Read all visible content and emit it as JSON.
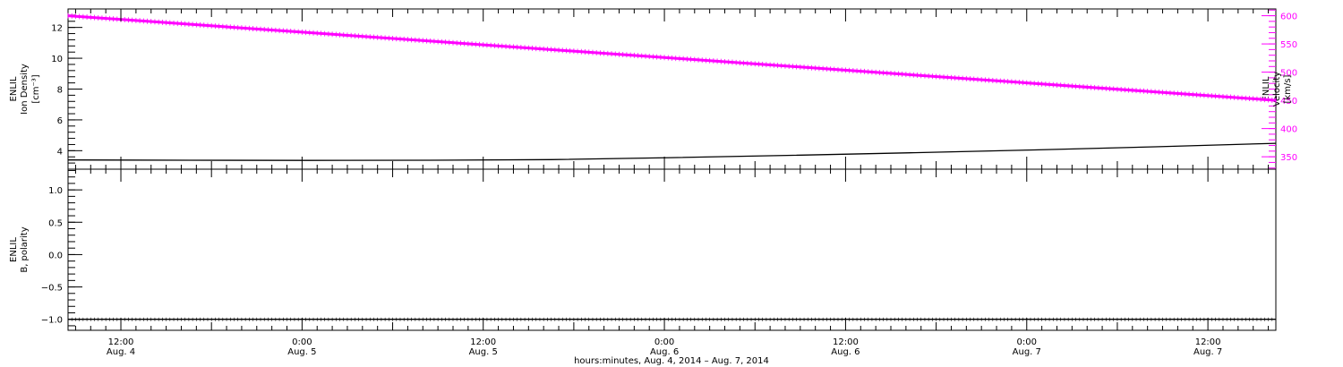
{
  "chart_data": [
    {
      "type": "line",
      "ylabel": [
        "ENLIL",
        "Ion Density",
        "[cm⁻³]"
      ],
      "ylim": [
        2.8,
        13.2
      ],
      "yticks": [
        4,
        6,
        8,
        10,
        12
      ],
      "ytick_labels": [
        "4",
        "6",
        "8",
        "10",
        "12"
      ],
      "y2label": [
        "ENLIL",
        "Velocity",
        "[km/s]"
      ],
      "y2lim": [
        328,
        612
      ],
      "y2ticks": [
        350,
        400,
        450,
        500,
        550,
        600
      ],
      "y2tick_labels": [
        "350",
        "400",
        "450",
        "500",
        "550",
        "600"
      ],
      "grid": false,
      "series": [
        {
          "axis": "left",
          "color": "#000000",
          "x": [
            0,
            8,
            16,
            24,
            32,
            40,
            48,
            56,
            64,
            72,
            80
          ],
          "y": [
            3.4,
            3.38,
            3.37,
            3.38,
            3.42,
            3.55,
            3.7,
            3.87,
            4.05,
            4.25,
            4.48
          ]
        },
        {
          "axis": "right",
          "color": "#ff00ff",
          "x": [
            0,
            80
          ],
          "y": [
            600,
            450
          ]
        }
      ]
    },
    {
      "type": "line",
      "ylabel": [
        "ENLIL",
        "B, polarity"
      ],
      "ylim": [
        -1.17,
        1.32
      ],
      "yticks": [
        -1.0,
        -0.5,
        0.0,
        0.5,
        1.0
      ],
      "ytick_labels": [
        "−1.0",
        "−0.5",
        "0.0",
        "0.5",
        "1.0"
      ],
      "grid": false,
      "series": [
        {
          "color": "#000000",
          "x": [
            0,
            80
          ],
          "y": [
            -1.0,
            -1.0
          ]
        }
      ]
    }
  ],
  "x_axis": {
    "xlim": [
      0,
      80
    ],
    "ticks": [
      {
        "x": 3.5,
        "time": "12:00",
        "date": "Aug. 4"
      },
      {
        "x": 15.5,
        "time": "0:00",
        "date": "Aug. 5"
      },
      {
        "x": 27.5,
        "time": "12:00",
        "date": "Aug. 5"
      },
      {
        "x": 39.5,
        "time": "0:00",
        "date": "Aug. 6"
      },
      {
        "x": 51.5,
        "time": "12:00",
        "date": "Aug. 6"
      },
      {
        "x": 63.5,
        "time": "0:00",
        "date": "Aug. 7"
      },
      {
        "x": 75.5,
        "time": "12:00",
        "date": "Aug. 7"
      }
    ],
    "label": "hours:minutes, Aug.  4, 2014 – Aug.  7, 2014"
  },
  "colors": {
    "axis": "#000000",
    "density": "#000000",
    "velocity": "#ff00ff"
  }
}
